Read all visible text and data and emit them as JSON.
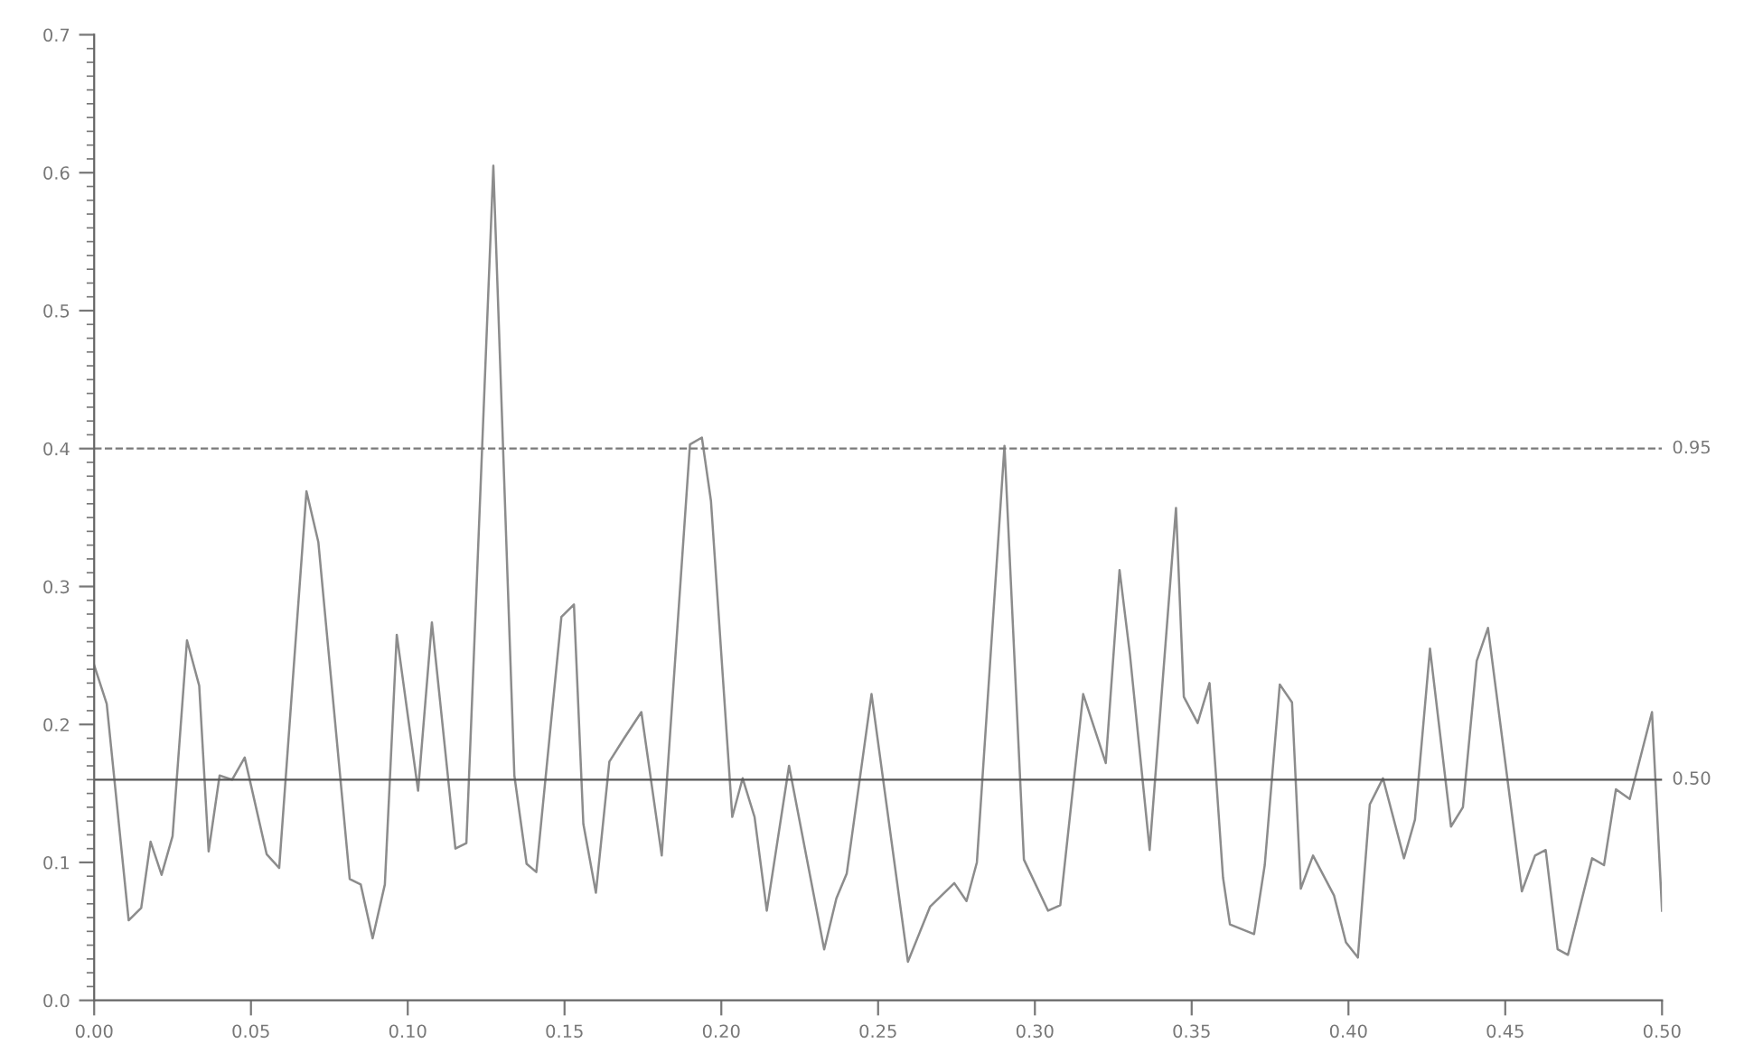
{
  "chart_data": {
    "type": "line",
    "x": [
      0,
      0.004,
      0.011,
      0.015,
      0.018,
      0.0215,
      0.025,
      0.0296,
      0.0335,
      0.0365,
      0.04,
      0.044,
      0.048,
      0.055,
      0.059,
      0.0677,
      0.0715,
      0.0815,
      0.085,
      0.0888,
      0.0927,
      0.0965,
      0.1033,
      0.1077,
      0.1152,
      0.1187,
      0.1273,
      0.134,
      0.1379,
      0.141,
      0.149,
      0.153,
      0.156,
      0.16,
      0.1643,
      0.169,
      0.1745,
      0.181,
      0.19,
      0.1938,
      0.1967,
      0.2035,
      0.2068,
      0.2106,
      0.2145,
      0.2216,
      0.2328,
      0.2367,
      0.24,
      0.2479,
      0.2595,
      0.2666,
      0.2743,
      0.2782,
      0.2815,
      0.2903,
      0.2965,
      0.3042,
      0.3081,
      0.3154,
      0.3226,
      0.327,
      0.3303,
      0.3366,
      0.345,
      0.3475,
      0.3519,
      0.3557,
      0.36,
      0.3622,
      0.3699,
      0.3733,
      0.3781,
      0.382,
      0.3848,
      0.3887,
      0.3954,
      0.3992,
      0.403,
      0.4068,
      0.411,
      0.4177,
      0.4212,
      0.426,
      0.4327,
      0.4365,
      0.4409,
      0.4445,
      0.4553,
      0.4595,
      0.4629,
      0.4667,
      0.47,
      0.4777,
      0.4815,
      0.4853,
      0.4897,
      0.4968,
      0.5
    ],
    "series": [
      {
        "color": "#8c8c8c",
        "values": [
          0.243,
          0.215,
          0.058,
          0.067,
          0.115,
          0.091,
          0.119,
          0.261,
          0.228,
          0.108,
          0.163,
          0.16,
          0.176,
          0.106,
          0.096,
          0.369,
          0.332,
          0.088,
          0.084,
          0.045,
          0.084,
          0.265,
          0.152,
          0.274,
          0.11,
          0.114,
          0.605,
          0.163,
          0.099,
          0.093,
          0.278,
          0.287,
          0.128,
          0.078,
          0.173,
          0.19,
          0.209,
          0.105,
          0.403,
          0.408,
          0.362,
          0.133,
          0.161,
          0.133,
          0.065,
          0.17,
          0.037,
          0.074,
          0.092,
          0.222,
          0.028,
          0.068,
          0.085,
          0.072,
          0.1,
          0.402,
          0.102,
          0.065,
          0.069,
          0.222,
          0.172,
          0.312,
          0.251,
          0.109,
          0.357,
          0.22,
          0.201,
          0.23,
          0.089,
          0.055,
          0.048,
          0.098,
          0.229,
          0.216,
          0.081,
          0.105,
          0.076,
          0.042,
          0.031,
          0.142,
          0.161,
          0.103,
          0.131,
          0.255,
          0.126,
          0.14,
          0.246,
          0.27,
          0.079,
          0.105,
          0.109,
          0.037,
          0.033,
          0.103,
          0.098,
          0.153,
          0.146,
          0.209,
          0.065
        ]
      }
    ],
    "xlim": [
      0,
      0.5
    ],
    "xticks": [
      {
        "value": 0,
        "label": "0.00"
      },
      {
        "value": 0.05,
        "label": "0.05"
      },
      {
        "value": 0.1,
        "label": "0.10"
      },
      {
        "value": 0.15,
        "label": "0.15"
      },
      {
        "value": 0.2,
        "label": "0.20"
      },
      {
        "value": 0.25,
        "label": "0.25"
      },
      {
        "value": 0.3,
        "label": "0.30"
      },
      {
        "value": 0.35,
        "label": "0.35"
      },
      {
        "value": 0.4,
        "label": "0.40"
      },
      {
        "value": 0.45,
        "label": "0.45"
      },
      {
        "value": 0.5,
        "label": "0.50"
      }
    ],
    "ylim": [
      0,
      0.7
    ],
    "yticks": [
      {
        "value": 0,
        "label": "0.0"
      },
      {
        "value": 0.1,
        "label": "0.1"
      },
      {
        "value": 0.2,
        "label": "0.2"
      },
      {
        "value": 0.3,
        "label": "0.3"
      },
      {
        "value": 0.4,
        "label": "0.4"
      },
      {
        "value": 0.5,
        "label": "0.5"
      },
      {
        "value": 0.6,
        "label": "0.6"
      },
      {
        "value": 0.7,
        "label": "0.7"
      }
    ],
    "ref_lines": [
      {
        "axis": "y",
        "value": 0.4,
        "color": "#7a7a7a",
        "line_style": "dashed"
      },
      {
        "axis": "y",
        "value": 0.16,
        "color": "#555555",
        "line_style": "solid"
      }
    ],
    "annotations": [
      {
        "text": "0.95",
        "x": 0.5,
        "y": 0.4
      },
      {
        "text": "0.50",
        "x": 0.5,
        "y": 0.16
      }
    ],
    "grid": false,
    "marker": "none",
    "line_style": "solid"
  }
}
